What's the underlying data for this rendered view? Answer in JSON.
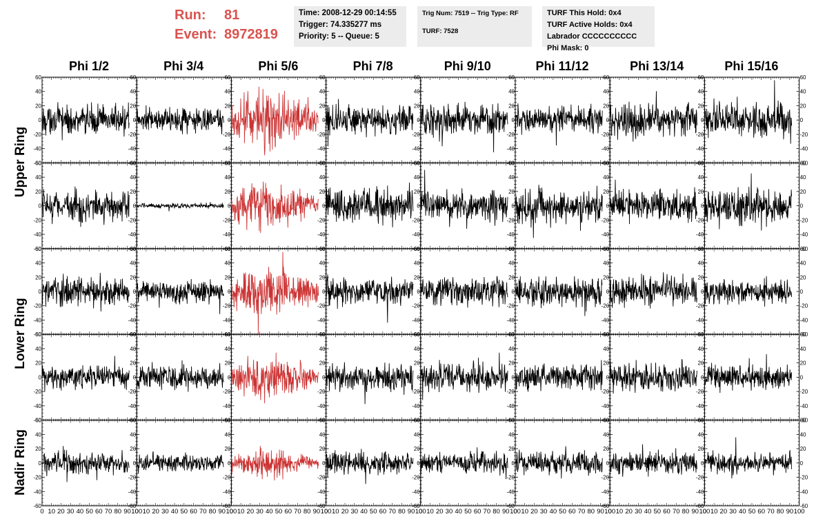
{
  "run": {
    "run_label": "Run:",
    "run_value": "81",
    "event_label": "Event:",
    "event_value": "8972819",
    "color": "#d9534f"
  },
  "info": {
    "time": "Time: 2008-12-29 00:14:55",
    "trigger": "Trigger: 74.335277 ms",
    "priority": "Priority: 5 -- Queue: 5",
    "trig_num": "Trig Num: 7519 -- Trig Type: RF",
    "turf": "TURF: 7528",
    "turf_hold": "TURF This Hold: 0x4",
    "turf_active": "TURF Active Holds: 0x4",
    "labrador": "Labrador CCCCCCCCCC",
    "phi_mask": "Phi Mask: 0"
  },
  "chart_data": {
    "type": "line",
    "columns": [
      "Phi 1/2",
      "Phi 3/4",
      "Phi 5/6",
      "Phi 7/8",
      "Phi 9/10",
      "Phi 11/12",
      "Phi 13/14",
      "Phi 15/16"
    ],
    "row_labels": [
      {
        "label": "Upper Ring",
        "rows": [
          0,
          1
        ]
      },
      {
        "label": "Lower Ring",
        "rows": [
          2,
          3
        ]
      },
      {
        "label": "Nadir Ring",
        "rows": [
          4
        ]
      }
    ],
    "xlim": [
      0,
      100
    ],
    "ylim": [
      -60,
      60
    ],
    "x_ticks": [
      "0",
      "10",
      "20",
      "30",
      "40",
      "50",
      "60",
      "70",
      "80",
      "90",
      "100"
    ],
    "y_ticks": [
      "60",
      "40",
      "20",
      "0",
      "-20",
      "-40",
      "-60"
    ],
    "highlight_column": 2,
    "highlight_color": "#cc3333",
    "normal_color": "#000000",
    "waveform_x_range": [
      0,
      92
    ],
    "amplitudes": [
      [
        12,
        10,
        18,
        12,
        13,
        12,
        14,
        14
      ],
      [
        13,
        2,
        15,
        14,
        12,
        14,
        13,
        14
      ],
      [
        12,
        10,
        17,
        11,
        12,
        12,
        12,
        10
      ],
      [
        10,
        10,
        14,
        11,
        11,
        11,
        12,
        10
      ],
      [
        9,
        7,
        9,
        9,
        8,
        10,
        9,
        9
      ]
    ]
  }
}
